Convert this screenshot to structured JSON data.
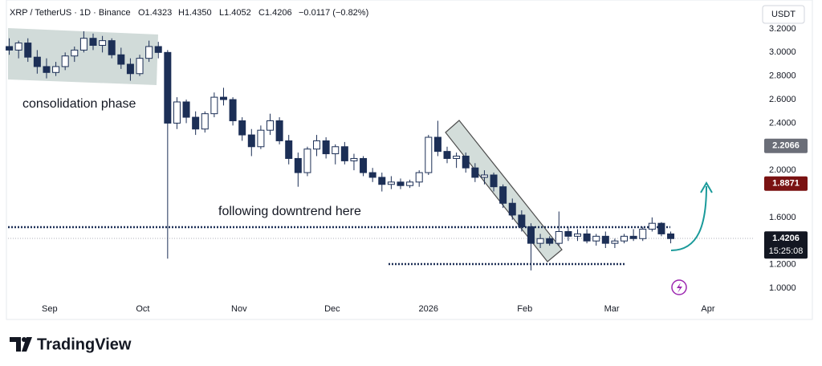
{
  "header": {
    "symbol": "XRP / TetherUS · 1D · Binance",
    "ohlc": [
      "O1.4323",
      "H1.4350",
      "L1.4052",
      "C1.4206"
    ],
    "change": "−0.0117 (−0.82%)",
    "currency": "USDT"
  },
  "annotations": [
    "consolidation phase",
    "following downtrend here"
  ],
  "countdown": "15:25:08",
  "brand": "TradingView",
  "chart_data": {
    "type": "candlestick",
    "up_color": "#ffffff",
    "down_color": "#1c2f56",
    "xlim": [
      -13.4,
      227
    ],
    "ylim": [
      0.911,
      3.445
    ],
    "xticks": [
      {
        "value": 0,
        "label": "Sep"
      },
      {
        "value": 30,
        "label": "Oct"
      },
      {
        "value": 61,
        "label": "Nov"
      },
      {
        "value": 91,
        "label": "Dec"
      },
      {
        "value": 122,
        "label": "2026"
      },
      {
        "value": 153,
        "label": "Feb"
      },
      {
        "value": 181,
        "label": "Mar"
      },
      {
        "value": 212,
        "label": "Apr"
      }
    ],
    "yticks": [
      {
        "value": 1.0,
        "label": "1.0000"
      },
      {
        "value": 1.2,
        "label": "1.2000"
      },
      {
        "value": 1.6,
        "label": "1.6000"
      },
      {
        "value": 2.0,
        "label": "2.0000"
      },
      {
        "value": 2.4,
        "label": "2.4000"
      },
      {
        "value": 2.6,
        "label": "2.6000"
      },
      {
        "value": 2.8,
        "label": "2.8000"
      },
      {
        "value": 3.0,
        "label": "3.0000"
      },
      {
        "value": 3.2,
        "label": "3.2000"
      }
    ],
    "price_labels": [
      {
        "value": 2.2066,
        "color": "#6b6e78"
      },
      {
        "value": 1.8871,
        "color": "#7a1212"
      },
      {
        "value": 1.4206,
        "color": "#131722"
      }
    ],
    "x": [
      -13,
      -10,
      -7,
      -4,
      -1,
      2,
      5,
      8,
      11,
      14,
      17,
      20,
      23,
      26,
      29,
      32,
      35,
      38,
      41,
      44,
      47,
      50,
      53,
      56,
      59,
      62,
      65,
      68,
      71,
      74,
      77,
      80,
      83,
      86,
      89,
      92,
      95,
      98,
      101,
      104,
      107,
      110,
      113,
      116,
      119,
      122,
      125,
      128,
      131,
      134,
      137,
      140,
      143,
      146,
      149,
      152,
      155,
      158,
      161,
      164,
      167,
      170,
      173,
      176,
      179,
      182,
      185,
      188,
      191,
      194,
      197,
      200
    ],
    "candles": [
      [
        3.05,
        3.12,
        2.98,
        3.02
      ],
      [
        3.02,
        3.1,
        2.95,
        3.08
      ],
      [
        3.08,
        3.12,
        2.92,
        2.96
      ],
      [
        2.96,
        3.02,
        2.82,
        2.88
      ],
      [
        2.88,
        2.95,
        2.78,
        2.83
      ],
      [
        2.83,
        2.92,
        2.8,
        2.88
      ],
      [
        2.88,
        3.0,
        2.85,
        2.97
      ],
      [
        2.97,
        3.05,
        2.92,
        3.02
      ],
      [
        3.02,
        3.18,
        3.0,
        3.12
      ],
      [
        3.12,
        3.16,
        3.02,
        3.06
      ],
      [
        3.06,
        3.14,
        3.0,
        3.1
      ],
      [
        3.1,
        3.12,
        2.95,
        2.98
      ],
      [
        2.98,
        3.04,
        2.86,
        2.9
      ],
      [
        2.9,
        2.95,
        2.76,
        2.82
      ],
      [
        2.82,
        2.98,
        2.8,
        2.95
      ],
      [
        2.95,
        3.1,
        2.92,
        3.05
      ],
      [
        3.05,
        3.09,
        2.95,
        3.0
      ],
      [
        3.0,
        3.02,
        1.25,
        2.4
      ],
      [
        2.4,
        2.62,
        2.35,
        2.58
      ],
      [
        2.58,
        2.6,
        2.4,
        2.45
      ],
      [
        2.45,
        2.5,
        2.3,
        2.35
      ],
      [
        2.35,
        2.5,
        2.32,
        2.48
      ],
      [
        2.48,
        2.66,
        2.45,
        2.62
      ],
      [
        2.62,
        2.7,
        2.55,
        2.6
      ],
      [
        2.6,
        2.62,
        2.38,
        2.42
      ],
      [
        2.42,
        2.45,
        2.25,
        2.3
      ],
      [
        2.3,
        2.35,
        2.12,
        2.2
      ],
      [
        2.2,
        2.38,
        2.18,
        2.34
      ],
      [
        2.34,
        2.48,
        2.3,
        2.42
      ],
      [
        2.42,
        2.45,
        2.22,
        2.25
      ],
      [
        2.25,
        2.3,
        2.05,
        2.1
      ],
      [
        2.1,
        2.15,
        1.86,
        1.98
      ],
      [
        1.98,
        2.2,
        1.95,
        2.18
      ],
      [
        2.18,
        2.3,
        2.12,
        2.25
      ],
      [
        2.25,
        2.28,
        2.1,
        2.14
      ],
      [
        2.14,
        2.22,
        2.05,
        2.2
      ],
      [
        2.2,
        2.24,
        2.05,
        2.08
      ],
      [
        2.08,
        2.14,
        2.0,
        2.1
      ],
      [
        2.1,
        2.12,
        1.95,
        1.98
      ],
      [
        1.98,
        2.02,
        1.9,
        1.94
      ],
      [
        1.94,
        1.98,
        1.82,
        1.88
      ],
      [
        1.88,
        1.95,
        1.84,
        1.9
      ],
      [
        1.9,
        1.93,
        1.84,
        1.87
      ],
      [
        1.87,
        1.92,
        1.85,
        1.9
      ],
      [
        1.9,
        2.0,
        1.86,
        1.98
      ],
      [
        1.98,
        2.3,
        1.96,
        2.28
      ],
      [
        2.28,
        2.42,
        2.12,
        2.16
      ],
      [
        2.16,
        2.2,
        2.06,
        2.1
      ],
      [
        2.1,
        2.15,
        2.02,
        2.12
      ],
      [
        2.12,
        2.15,
        1.98,
        2.02
      ],
      [
        2.02,
        2.06,
        1.9,
        1.94
      ],
      [
        1.94,
        2.0,
        1.88,
        1.96
      ],
      [
        1.96,
        1.98,
        1.82,
        1.86
      ],
      [
        1.86,
        1.88,
        1.68,
        1.72
      ],
      [
        1.72,
        1.76,
        1.58,
        1.62
      ],
      [
        1.62,
        1.66,
        1.48,
        1.52
      ],
      [
        1.52,
        1.55,
        1.15,
        1.38
      ],
      [
        1.38,
        1.46,
        1.34,
        1.42
      ],
      [
        1.42,
        1.44,
        1.36,
        1.38
      ],
      [
        1.38,
        1.65,
        1.36,
        1.48
      ],
      [
        1.48,
        1.52,
        1.4,
        1.44
      ],
      [
        1.44,
        1.5,
        1.4,
        1.46
      ],
      [
        1.46,
        1.5,
        1.38,
        1.4
      ],
      [
        1.4,
        1.46,
        1.36,
        1.44
      ],
      [
        1.44,
        1.48,
        1.34,
        1.38
      ],
      [
        1.38,
        1.42,
        1.34,
        1.4
      ],
      [
        1.4,
        1.46,
        1.38,
        1.44
      ],
      [
        1.44,
        1.5,
        1.4,
        1.42
      ],
      [
        1.42,
        1.52,
        1.4,
        1.5
      ],
      [
        1.5,
        1.6,
        1.48,
        1.55
      ],
      [
        1.55,
        1.56,
        1.44,
        1.46
      ],
      [
        1.46,
        1.48,
        1.38,
        1.42
      ]
    ]
  }
}
